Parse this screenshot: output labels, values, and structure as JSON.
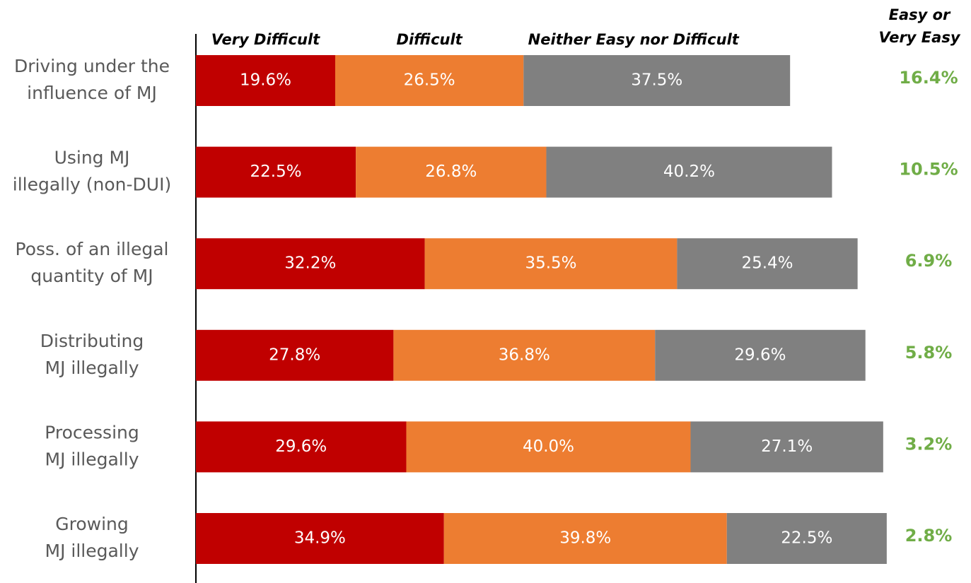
{
  "chart_data": {
    "type": "stacked-barh",
    "categories": [
      "Driving under the\ninfluence of MJ",
      "Using MJ\nillegally (non-DUI)",
      "Poss. of an illegal\nquantity of MJ",
      "Distributing\nMJ illegally",
      "Processing\nMJ illegally",
      "Growing\nMJ illegally"
    ],
    "xlim": [
      0,
      100
    ],
    "series": [
      {
        "name": "Very Difficult",
        "color": "#c00000",
        "values": [
          19.6,
          22.5,
          32.2,
          27.8,
          29.6,
          34.9
        ],
        "value_labels": [
          "19.6%",
          "22.5%",
          "32.2%",
          "27.8%",
          "29.6%",
          "34.9%"
        ]
      },
      {
        "name": "Difficult",
        "color": "#ed7d31",
        "values": [
          26.5,
          26.8,
          35.5,
          36.8,
          40.0,
          39.8
        ],
        "value_labels": [
          "26.5%",
          "26.8%",
          "35.5%",
          "36.8%",
          "40.0%",
          "39.8%"
        ]
      },
      {
        "name": "Neither Easy nor Difficult",
        "color": "#808080",
        "values": [
          37.5,
          40.2,
          25.4,
          29.6,
          27.1,
          22.5
        ],
        "value_labels": [
          "37.5%",
          "40.2%",
          "25.4%",
          "29.6%",
          "27.1%",
          "22.5%"
        ]
      },
      {
        "name": "Easy or\nVery Easy",
        "color": "#70ad47",
        "values": [
          16.4,
          10.5,
          6.9,
          5.8,
          3.2,
          2.8
        ],
        "value_labels": [
          "16.4%",
          "10.5%",
          "6.9%",
          "5.8%",
          "3.2%",
          "2.8%"
        ]
      }
    ]
  }
}
